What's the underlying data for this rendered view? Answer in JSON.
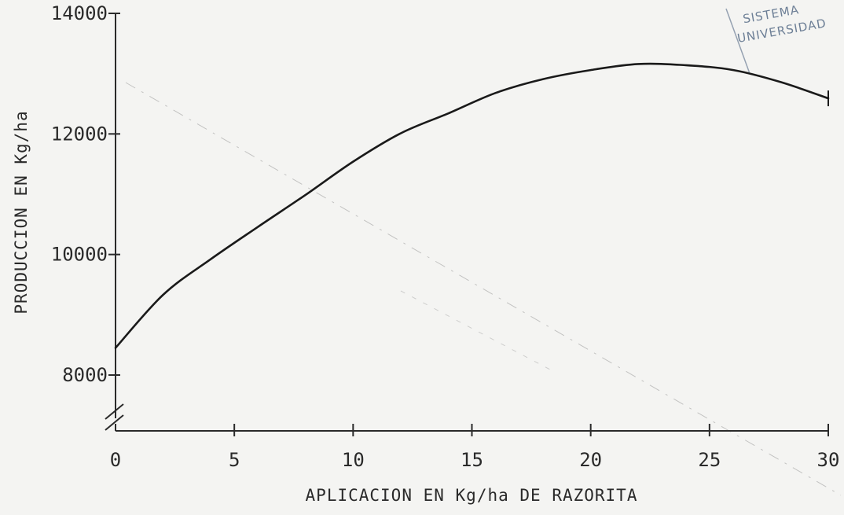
{
  "chart_data": {
    "type": "line",
    "title": "",
    "xlabel": "APLICACION EN Kg/ha DE RAZORITA",
    "ylabel": "PRODUCCION EN Kg/ha",
    "xlim": [
      0,
      30
    ],
    "ylim": [
      8000,
      14000
    ],
    "x_ticks": [
      0,
      5,
      10,
      15,
      20,
      25,
      30
    ],
    "y_ticks": [
      8000,
      10000,
      12000,
      14000
    ],
    "axis_break": true,
    "grid": false,
    "legend": "none",
    "series": [
      {
        "x": [
          0,
          2,
          4,
          6,
          8,
          10,
          12,
          14,
          16,
          18,
          20,
          22,
          24,
          26,
          28,
          30
        ],
        "y": [
          8450,
          9330,
          9920,
          10460,
          10990,
          11540,
          12010,
          12340,
          12680,
          12910,
          13060,
          13160,
          13140,
          13060,
          12860,
          12590
        ]
      }
    ],
    "stamp": {
      "lines": [
        "SISTEMA",
        "UNIVERSIDAD"
      ]
    },
    "colors": {
      "curve": "#1a1a1a",
      "axis": "#2a2a2a",
      "paper": "#f4f4f2",
      "stamp": "#6d7f96"
    }
  }
}
